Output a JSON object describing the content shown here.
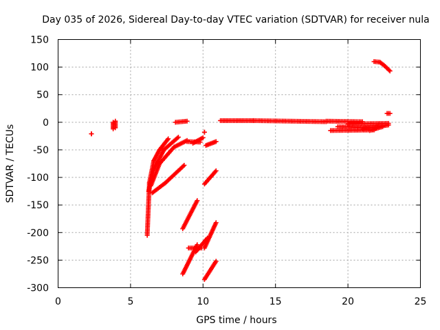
{
  "chart_data": {
    "type": "scatter",
    "title": "Day 035 of 2026, Sidereal Day-to-day VTEC variation (SDTVAR) for receiver nula",
    "xlabel": "GPS time / hours",
    "ylabel": "SDTVAR / TECUs",
    "xlim": [
      0,
      25
    ],
    "ylim": [
      -300,
      150
    ],
    "xticks": [
      0,
      5,
      10,
      15,
      20,
      25
    ],
    "yticks": [
      -300,
      -250,
      -200,
      -150,
      -100,
      -50,
      0,
      50,
      100,
      150
    ],
    "grid": true,
    "marker": "+",
    "color": "#ff0000",
    "segments": [
      {
        "x0": 2.3,
        "y0": -21,
        "x1": 2.3,
        "y1": -21
      },
      {
        "x0": 3.8,
        "y0": -12,
        "x1": 3.8,
        "y1": 0
      },
      {
        "x0": 3.95,
        "y0": -10,
        "x1": 3.95,
        "y1": 2
      },
      {
        "x0": 6.15,
        "y0": -205,
        "x1": 6.3,
        "y1": -110
      },
      {
        "x0": 6.3,
        "y0": -110,
        "x1": 6.6,
        "y1": -70
      },
      {
        "x0": 6.6,
        "y0": -70,
        "x1": 7.0,
        "y1": -50
      },
      {
        "x0": 7.0,
        "y0": -50,
        "x1": 7.6,
        "y1": -30
      },
      {
        "x0": 6.25,
        "y0": -125,
        "x1": 6.6,
        "y1": -85
      },
      {
        "x0": 6.6,
        "y0": -85,
        "x1": 7.3,
        "y1": -50
      },
      {
        "x0": 7.3,
        "y0": -50,
        "x1": 8.3,
        "y1": -27
      },
      {
        "x0": 6.4,
        "y0": -115,
        "x1": 7.0,
        "y1": -75
      },
      {
        "x0": 7.0,
        "y0": -75,
        "x1": 8.0,
        "y1": -45
      },
      {
        "x0": 8.0,
        "y0": -45,
        "x1": 8.9,
        "y1": -33
      },
      {
        "x0": 6.5,
        "y0": -128,
        "x1": 7.4,
        "y1": -110
      },
      {
        "x0": 7.4,
        "y0": -110,
        "x1": 8.7,
        "y1": -78
      },
      {
        "x0": 8.1,
        "y0": 0,
        "x1": 8.9,
        "y1": 2
      },
      {
        "x0": 8.9,
        "y0": -35,
        "x1": 9.8,
        "y1": -36
      },
      {
        "x0": 9.3,
        "y0": -38,
        "x1": 10.0,
        "y1": -28
      },
      {
        "x0": 10.1,
        "y0": -18,
        "x1": 10.1,
        "y1": -18
      },
      {
        "x0": 10.2,
        "y0": -42,
        "x1": 10.9,
        "y1": -35
      },
      {
        "x0": 8.6,
        "y0": -193,
        "x1": 9.6,
        "y1": -142
      },
      {
        "x0": 8.6,
        "y0": -275,
        "x1": 9.6,
        "y1": -222
      },
      {
        "x0": 9.0,
        "y0": -228,
        "x1": 9.9,
        "y1": -228
      },
      {
        "x0": 9.5,
        "y0": -235,
        "x1": 10.3,
        "y1": -210
      },
      {
        "x0": 10.1,
        "y0": -112,
        "x1": 10.9,
        "y1": -88
      },
      {
        "x0": 10.1,
        "y0": -228,
        "x1": 10.9,
        "y1": -182
      },
      {
        "x0": 10.1,
        "y0": -285,
        "x1": 10.9,
        "y1": -252
      },
      {
        "x0": 11.2,
        "y0": 3,
        "x1": 13.5,
        "y1": 3
      },
      {
        "x0": 13.5,
        "y0": 3,
        "x1": 18.5,
        "y1": 1
      },
      {
        "x0": 18.5,
        "y0": 2,
        "x1": 21.0,
        "y1": 1
      },
      {
        "x0": 18.8,
        "y0": -15,
        "x1": 21.8,
        "y1": -14
      },
      {
        "x0": 19.3,
        "y0": -8,
        "x1": 22.0,
        "y1": -10
      },
      {
        "x0": 20.0,
        "y0": -3,
        "x1": 22.8,
        "y1": -2
      },
      {
        "x0": 21.0,
        "y0": -12,
        "x1": 22.8,
        "y1": -5
      },
      {
        "x0": 21.5,
        "y0": -15,
        "x1": 22.4,
        "y1": -8
      },
      {
        "x0": 22.7,
        "y0": 16,
        "x1": 22.9,
        "y1": 16
      },
      {
        "x0": 21.8,
        "y0": 110,
        "x1": 22.2,
        "y1": 109
      },
      {
        "x0": 22.2,
        "y0": 109,
        "x1": 22.5,
        "y1": 103
      },
      {
        "x0": 22.5,
        "y0": 103,
        "x1": 22.9,
        "y1": 93
      }
    ]
  }
}
